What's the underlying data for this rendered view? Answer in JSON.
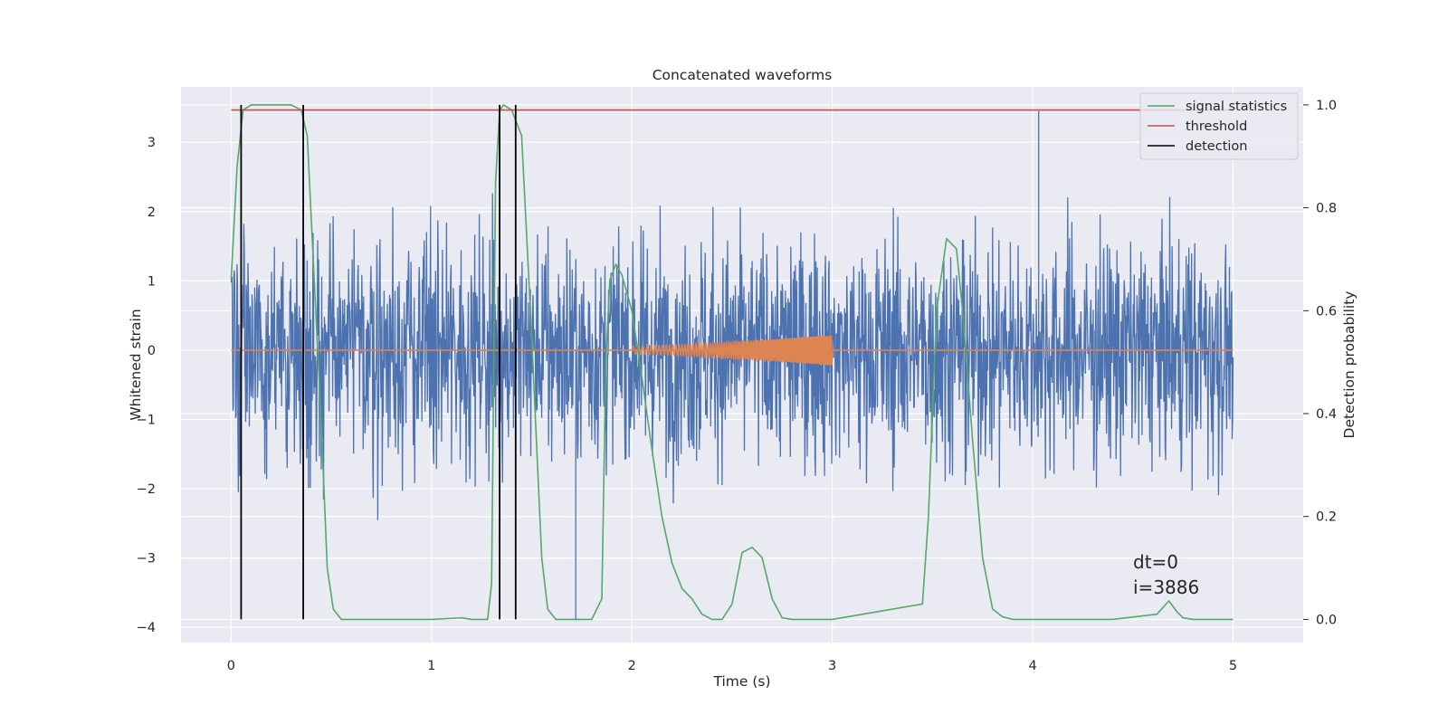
{
  "chart_data": {
    "type": "line",
    "title": "Concatenated waveforms",
    "xlabel": "Time (s)",
    "ylabel": "Whitened strain",
    "y2label": "Detection probability",
    "xlim": [
      -0.25,
      5.35
    ],
    "ylim": [
      -4.22,
      3.8
    ],
    "y2lim": [
      -0.045,
      1.035
    ],
    "x_ticks": [
      0,
      1,
      2,
      3,
      4,
      5
    ],
    "y_ticks": [
      -4,
      -3,
      -2,
      -1,
      0,
      1,
      2,
      3
    ],
    "y2_ticks": [
      0.0,
      0.2,
      0.4,
      0.6,
      0.8,
      1.0
    ],
    "grid": true,
    "legend": {
      "position": "top-right",
      "entries": [
        "signal statistics",
        "threshold",
        "detection"
      ]
    },
    "series": [
      {
        "name": "signal statistics",
        "axis": "right",
        "color": "#55a868",
        "x": [
          0.0,
          0.03,
          0.06,
          0.1,
          0.2,
          0.3,
          0.35,
          0.38,
          0.41,
          0.45,
          0.48,
          0.51,
          0.55,
          0.6,
          0.8,
          1.0,
          1.15,
          1.2,
          1.28,
          1.3,
          1.32,
          1.34,
          1.36,
          1.4,
          1.45,
          1.5,
          1.55,
          1.58,
          1.62,
          1.65,
          1.8,
          1.85,
          1.87,
          1.89,
          1.92,
          1.95,
          2.0,
          2.05,
          2.1,
          2.15,
          2.2,
          2.25,
          2.3,
          2.35,
          2.4,
          2.45,
          2.5,
          2.55,
          2.6,
          2.65,
          2.7,
          2.75,
          2.8,
          3.0,
          3.45,
          3.48,
          3.52,
          3.57,
          3.62,
          3.65,
          3.7,
          3.75,
          3.8,
          3.85,
          3.9,
          4.0,
          4.4,
          4.62,
          4.68,
          4.72,
          4.75,
          4.8,
          5.0
        ],
        "values": [
          0.66,
          0.88,
          0.99,
          1.0,
          1.0,
          1.0,
          0.99,
          0.94,
          0.7,
          0.38,
          0.1,
          0.02,
          0.0,
          0.0,
          0.0,
          0.0,
          0.003,
          0.0,
          0.0,
          0.07,
          0.85,
          0.99,
          1.0,
          0.99,
          0.94,
          0.55,
          0.12,
          0.02,
          0.0,
          0.0,
          0.0,
          0.04,
          0.5,
          0.66,
          0.69,
          0.67,
          0.6,
          0.47,
          0.33,
          0.2,
          0.11,
          0.06,
          0.04,
          0.01,
          0.0,
          0.0,
          0.03,
          0.13,
          0.14,
          0.12,
          0.04,
          0.003,
          0.0,
          0.0,
          0.03,
          0.2,
          0.6,
          0.74,
          0.72,
          0.6,
          0.35,
          0.12,
          0.02,
          0.005,
          0.0,
          0.0,
          0.0,
          0.01,
          0.036,
          0.015,
          0.003,
          0.0,
          0.0
        ]
      },
      {
        "name": "threshold",
        "axis": "right",
        "color": "#c44e52",
        "x": [
          0.0,
          5.0
        ],
        "values": [
          0.99,
          0.99
        ]
      }
    ],
    "strain": {
      "axis": "left",
      "color": "#4c72b0",
      "x_range": [
        0.0,
        5.0
      ],
      "typical_envelope": [
        -1.9,
        1.9
      ],
      "max": 3.45,
      "min": -3.9
    },
    "injected_waveform": {
      "axis": "left",
      "color": "#dd8452",
      "x_range": [
        2.0,
        3.0
      ],
      "amplitude_start": 0.06,
      "amplitude_end": 0.22
    },
    "detections": {
      "name": "detection",
      "color": "#000000",
      "x": [
        0.05,
        0.36,
        1.34,
        1.42
      ]
    },
    "annotations": [
      "dt=0",
      "i=3886"
    ]
  }
}
